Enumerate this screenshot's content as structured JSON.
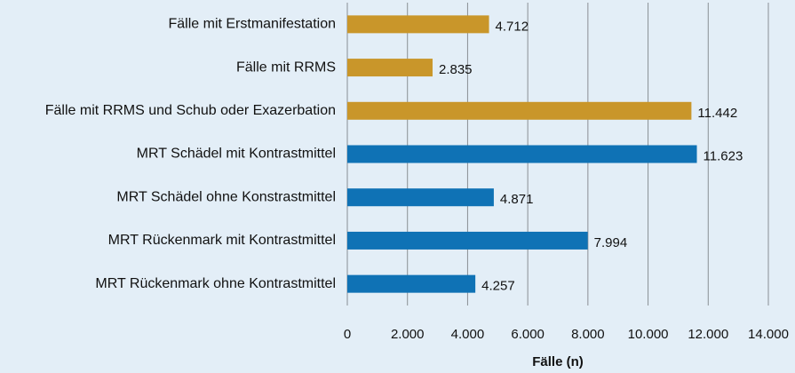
{
  "chart_data": {
    "type": "hbar",
    "categories": [
      "Fälle mit Erstmanifestation",
      "Fälle mit RRMS",
      "Fälle mit RRMS und Schub oder Exazerbation",
      "MRT Schädel mit Kontrastmittel",
      "MRT Schädel ohne Konstrastmittel",
      "MRT Rückenmark mit Kontrastmittel",
      "MRT Rückenmark ohne Kontrastmittel"
    ],
    "values": [
      4712,
      2835,
      11442,
      11623,
      4871,
      7994,
      4257
    ],
    "value_labels": [
      "4.712",
      "2.835",
      "11.442",
      "11.623",
      "4.871",
      "7.994",
      "4.257"
    ],
    "colors": [
      "#c9962a",
      "#c9962a",
      "#c9962a",
      "#0f72b5",
      "#0f72b5",
      "#0f72b5",
      "#0f72b5"
    ],
    "xlabel": "Fälle (n)",
    "xlim": [
      0,
      14000
    ],
    "xticks": [
      0,
      {
        "value": 2000,
        "label": "2.000"
      },
      {
        "value": 4000,
        "label": "4.000"
      },
      {
        "value": 6000,
        "label": "6.000"
      },
      {
        "value": 8000,
        "label": "8.000"
      },
      {
        "value": 10000,
        "label": "10.000"
      },
      {
        "value": 12000,
        "label": "12.000"
      },
      {
        "value": 14000,
        "label": "14.000"
      }
    ],
    "grid": true
  }
}
